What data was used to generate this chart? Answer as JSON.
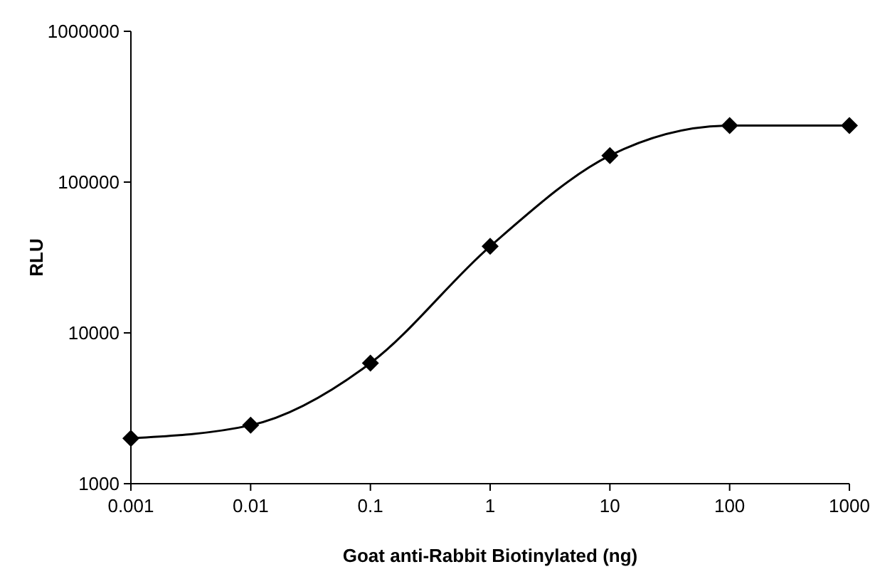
{
  "chart_data": {
    "type": "line",
    "xlabel": "Goat anti-Rabbit Biotinylated (ng)",
    "ylabel": "RLU",
    "x": [
      0.001,
      0.01,
      0.1,
      1,
      10,
      100,
      1000
    ],
    "series": [
      {
        "color": "#000000",
        "values": [
          2000,
          2440,
          6300,
          37500,
          150000,
          237000,
          237000
        ]
      }
    ],
    "log": "xy",
    "xlim": [
      0.001,
      1000
    ],
    "ylim": [
      1000,
      1000000
    ],
    "xticks": [
      0.001,
      0.01,
      0.1,
      1,
      10,
      100,
      1000
    ],
    "yticks": [
      1000,
      10000,
      100000,
      1000000
    ],
    "marker": "diamond",
    "line_style": "solid"
  }
}
